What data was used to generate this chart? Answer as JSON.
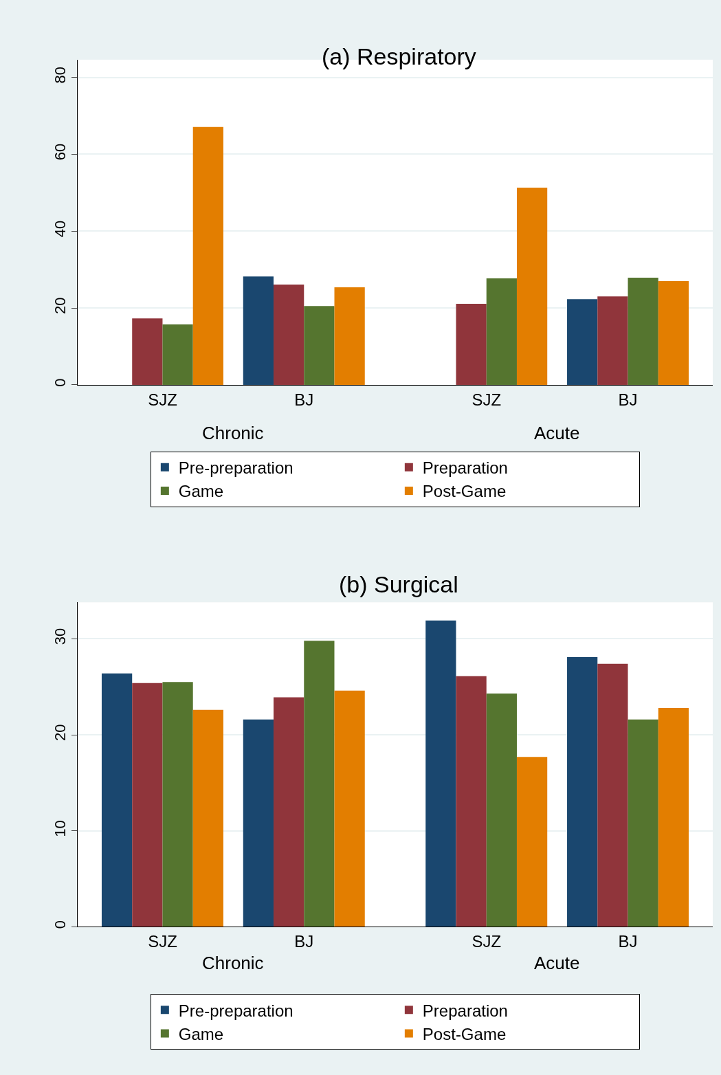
{
  "chart_data": [
    {
      "type": "bar",
      "title": "(a) Respiratory",
      "categories": [
        "SJZ",
        "BJ",
        "SJZ",
        "BJ"
      ],
      "annotations": [
        "Chronic",
        "Acute"
      ],
      "series": [
        {
          "name": "Pre-preparation",
          "color": "#1a476f",
          "values": [
            null,
            28.2,
            null,
            22.3
          ]
        },
        {
          "name": "Preparation",
          "color": "#90353b",
          "values": [
            17.3,
            26.1,
            21.1,
            23.0
          ]
        },
        {
          "name": "Game",
          "color": "#55752f",
          "values": [
            15.7,
            20.5,
            27.7,
            27.9
          ]
        },
        {
          "name": "Post-Game",
          "color": "#e37e00",
          "values": [
            67.1,
            25.4,
            51.3,
            27.0
          ]
        }
      ],
      "ylim": [
        0,
        84.6
      ],
      "yticks": [
        0,
        20,
        40,
        60,
        80
      ],
      "grid": "y",
      "legend": "bottom"
    },
    {
      "type": "bar",
      "title": "(b) Surgical",
      "categories": [
        "SJZ",
        "BJ",
        "SJZ",
        "BJ"
      ],
      "annotations": [
        "Chronic",
        "Acute"
      ],
      "series": [
        {
          "name": "Pre-preparation",
          "color": "#1a476f",
          "values": [
            26.4,
            21.6,
            31.9,
            28.1
          ]
        },
        {
          "name": "Preparation",
          "color": "#90353b",
          "values": [
            25.4,
            23.9,
            26.1,
            27.4
          ]
        },
        {
          "name": "Game",
          "color": "#55752f",
          "values": [
            25.5,
            29.8,
            24.3,
            21.6
          ]
        },
        {
          "name": "Post-Game",
          "color": "#e37e00",
          "values": [
            22.6,
            24.6,
            17.7,
            22.8
          ]
        }
      ],
      "ylim": [
        0,
        33.8
      ],
      "yticks": [
        0,
        10,
        20,
        30
      ],
      "grid": "y",
      "legend": "bottom"
    }
  ]
}
